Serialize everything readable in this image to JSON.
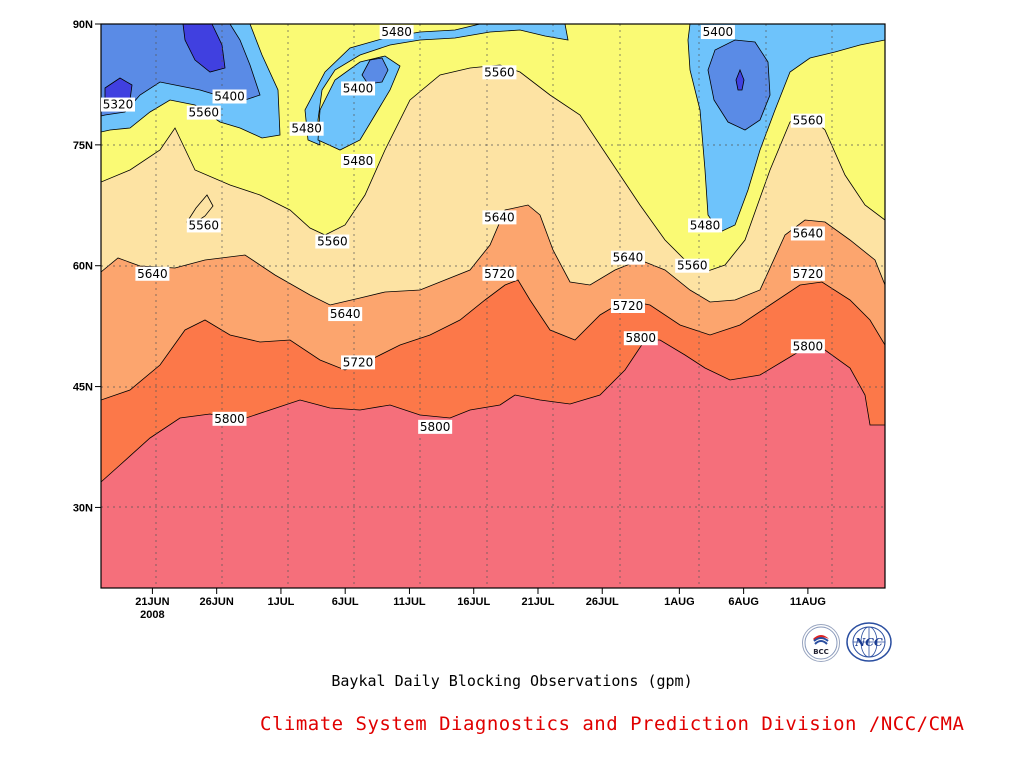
{
  "chart_data": {
    "type": "heatmap",
    "title": "Baykal Daily Blocking Observations (gpm)",
    "x_ticks": [
      "21JUN",
      "26JUN",
      "1JUL",
      "6JUL",
      "11JUL",
      "16JUL",
      "21JUL",
      "26JUL",
      "1AUG",
      "6AUG",
      "11AUG"
    ],
    "x_year_label": "2008",
    "x_range": [
      "2008-06-17",
      "2008-08-17"
    ],
    "y_ticks": [
      "30N",
      "45N",
      "60N",
      "75N",
      "90N"
    ],
    "y_range": [
      20,
      90
    ],
    "grid": true,
    "contour_levels": [
      5320,
      5400,
      5480,
      5560,
      5640,
      5720,
      5800
    ],
    "level_colors": {
      "below_5320": "#4040e0",
      "5320_5400": "#5a8be6",
      "5400_5480": "#6ec3fb",
      "5480_5560": "#fafa74",
      "5560_5640": "#fde3a3",
      "5640_5720": "#fca56e",
      "5720_5800": "#fc7849",
      "above_5800": "#f56f7b"
    },
    "contour_labels": [
      {
        "text": "5320",
        "date": "2008-06-17",
        "lat": 80
      },
      {
        "text": "5400",
        "date": "2008-06-27",
        "lat": 81
      },
      {
        "text": "5480",
        "date": "2008-07-10",
        "lat": 89
      },
      {
        "text": "5400",
        "date": "2008-07-07",
        "lat": 82
      },
      {
        "text": "5560",
        "date": "2008-06-25",
        "lat": 79
      },
      {
        "text": "5480",
        "date": "2008-07-03",
        "lat": 77
      },
      {
        "text": "5480",
        "date": "2008-07-07",
        "lat": 73
      },
      {
        "text": "5560",
        "date": "2008-07-18",
        "lat": 84
      },
      {
        "text": "5400",
        "date": "2008-08-04",
        "lat": 89
      },
      {
        "text": "5560",
        "date": "2008-08-11",
        "lat": 78
      },
      {
        "text": "5560",
        "date": "2008-06-25",
        "lat": 65
      },
      {
        "text": "5560",
        "date": "2008-07-05",
        "lat": 63
      },
      {
        "text": "5640",
        "date": "2008-07-18",
        "lat": 66
      },
      {
        "text": "5480",
        "date": "2008-08-03",
        "lat": 65
      },
      {
        "text": "5640",
        "date": "2008-08-11",
        "lat": 64
      },
      {
        "text": "5640",
        "date": "2008-06-21",
        "lat": 59
      },
      {
        "text": "5640",
        "date": "2008-07-28",
        "lat": 61
      },
      {
        "text": "5560",
        "date": "2008-08-02",
        "lat": 60
      },
      {
        "text": "5720",
        "date": "2008-07-18",
        "lat": 59
      },
      {
        "text": "5720",
        "date": "2008-08-11",
        "lat": 59
      },
      {
        "text": "5640",
        "date": "2008-07-06",
        "lat": 54
      },
      {
        "text": "5720",
        "date": "2008-07-28",
        "lat": 55
      },
      {
        "text": "5720",
        "date": "2008-07-07",
        "lat": 48
      },
      {
        "text": "5800",
        "date": "2008-07-29",
        "lat": 51
      },
      {
        "text": "5800",
        "date": "2008-08-11",
        "lat": 50
      },
      {
        "text": "5800",
        "date": "2008-06-27",
        "lat": 41
      },
      {
        "text": "5800",
        "date": "2008-07-13",
        "lat": 40
      }
    ]
  },
  "footer": {
    "credit": "Climate System Diagnostics and Prediction Division /NCC/CMA",
    "logo_bcc_text": "BCC",
    "logo_ncc_text": "NCC"
  }
}
